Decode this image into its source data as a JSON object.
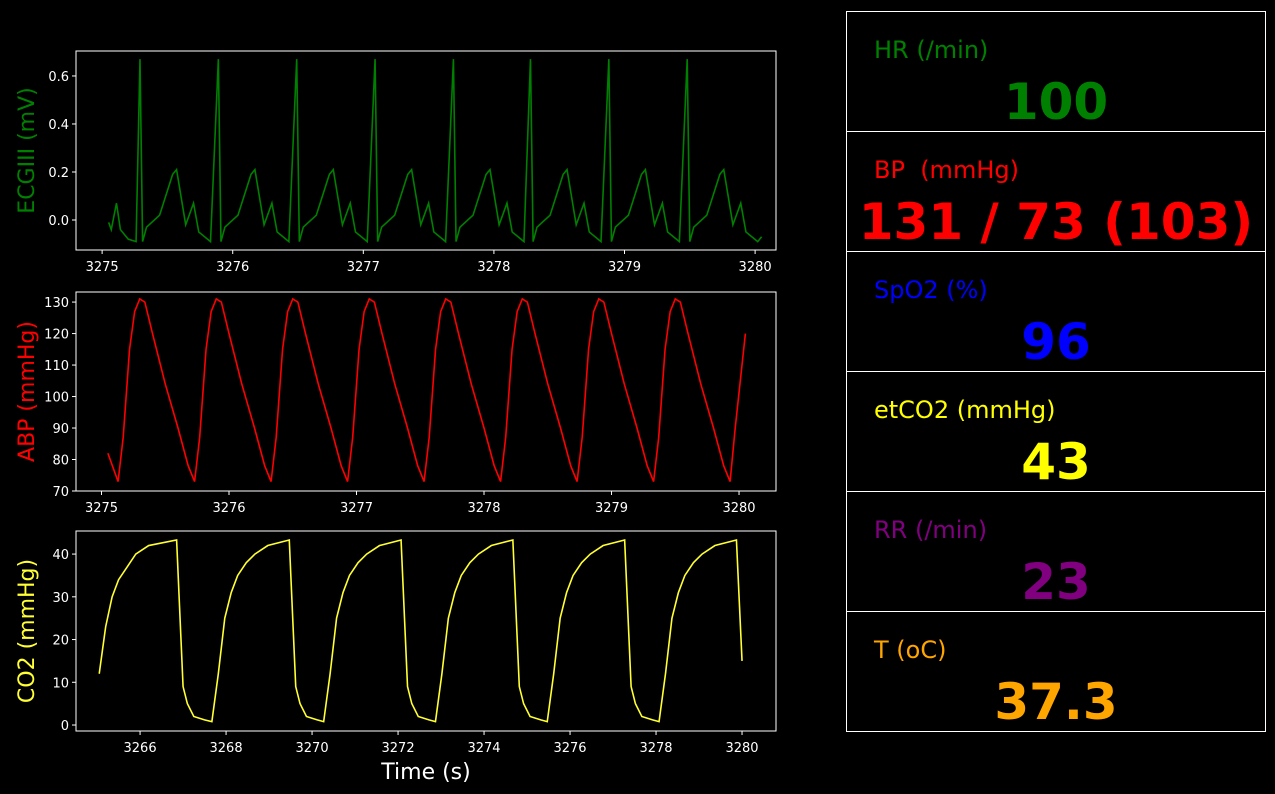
{
  "chart_data": [
    {
      "type": "line",
      "ylabel": "ECGIII (mV)",
      "color": "#008000",
      "xlim": [
        3274.8,
        3280.16
      ],
      "xticks": [
        3275,
        3276,
        3277,
        3278,
        3279,
        3280
      ],
      "ylim": [
        -0.125,
        0.704
      ],
      "yticks": [
        {
          "value": 0,
          "label": "0.0"
        },
        0.2,
        0.4,
        0.6
      ],
      "x": [
        3275.05,
        3275.07,
        3275.11,
        3275.14,
        3275.2,
        3275.26,
        3275.29,
        3275.31,
        3275.34,
        3275.44,
        3275.54,
        3275.57,
        3275.64,
        3275.7,
        3275.74,
        3275.83,
        3275.89,
        3275.91,
        3275.94,
        3276.04,
        3276.14,
        3276.17,
        3276.24,
        3276.3,
        3276.34,
        3276.43,
        3276.49,
        3276.51,
        3276.54,
        3276.64,
        3276.74,
        3276.77,
        3276.84,
        3276.9,
        3276.94,
        3277.03,
        3277.09,
        3277.11,
        3277.14,
        3277.24,
        3277.34,
        3277.37,
        3277.44,
        3277.5,
        3277.54,
        3277.63,
        3277.69,
        3277.71,
        3277.74,
        3277.84,
        3277.94,
        3277.97,
        3278.04,
        3278.1,
        3278.14,
        3278.23,
        3278.28,
        3278.3,
        3278.33,
        3278.43,
        3278.53,
        3278.56,
        3278.63,
        3278.69,
        3278.73,
        3278.82,
        3278.88,
        3278.9,
        3278.93,
        3279.03,
        3279.13,
        3279.16,
        3279.23,
        3279.29,
        3279.33,
        3279.42,
        3279.48,
        3279.5,
        3279.53,
        3279.63,
        3279.73,
        3279.76,
        3279.83,
        3279.89,
        3279.93,
        3280.02,
        3280.05
      ],
      "values": [
        -0.01,
        -0.04,
        0.07,
        -0.04,
        -0.08,
        -0.09,
        0.67,
        -0.09,
        -0.03,
        0.02,
        0.19,
        0.21,
        -0.02,
        0.07,
        -0.05,
        -0.09,
        0.67,
        -0.09,
        -0.03,
        0.02,
        0.19,
        0.21,
        -0.02,
        0.07,
        -0.05,
        -0.09,
        0.67,
        -0.09,
        -0.03,
        0.02,
        0.19,
        0.21,
        -0.02,
        0.07,
        -0.05,
        -0.09,
        0.67,
        -0.09,
        -0.03,
        0.02,
        0.19,
        0.21,
        -0.02,
        0.07,
        -0.05,
        -0.09,
        0.67,
        -0.09,
        -0.03,
        0.02,
        0.19,
        0.21,
        -0.02,
        0.07,
        -0.05,
        -0.09,
        0.67,
        -0.09,
        -0.03,
        0.02,
        0.19,
        0.21,
        -0.02,
        0.07,
        -0.05,
        -0.09,
        0.67,
        -0.09,
        -0.03,
        0.02,
        0.19,
        0.21,
        -0.02,
        0.07,
        -0.05,
        -0.09,
        0.67,
        -0.09,
        -0.03,
        0.02,
        0.19,
        0.21,
        -0.02,
        0.07,
        -0.05,
        -0.09,
        -0.07
      ]
    },
    {
      "type": "line",
      "ylabel": "ABP (mmHg)",
      "color": "#ff0000",
      "xlim": [
        3274.8,
        3280.29
      ],
      "xticks": [
        3275,
        3276,
        3277,
        3278,
        3279,
        3280
      ],
      "ylim": [
        70,
        133.2
      ],
      "yticks": [
        70,
        80,
        90,
        100,
        110,
        120,
        130
      ],
      "x": [
        3275.05,
        3275.13,
        3275.17,
        3275.22,
        3275.26,
        3275.3,
        3275.34,
        3275.4,
        3275.5,
        3275.6,
        3275.68,
        3275.73,
        3275.77,
        3275.82,
        3275.86,
        3275.9,
        3275.94,
        3276.0,
        3276.1,
        3276.2,
        3276.28,
        3276.33,
        3276.37,
        3276.42,
        3276.46,
        3276.5,
        3276.54,
        3276.6,
        3276.7,
        3276.8,
        3276.88,
        3276.93,
        3276.97,
        3277.02,
        3277.06,
        3277.1,
        3277.14,
        3277.2,
        3277.3,
        3277.4,
        3277.48,
        3277.53,
        3277.57,
        3277.62,
        3277.66,
        3277.7,
        3277.74,
        3277.8,
        3277.9,
        3278.0,
        3278.08,
        3278.13,
        3278.17,
        3278.22,
        3278.26,
        3278.3,
        3278.34,
        3278.4,
        3278.5,
        3278.6,
        3278.68,
        3278.73,
        3278.77,
        3278.82,
        3278.86,
        3278.9,
        3278.94,
        3279.0,
        3279.1,
        3279.2,
        3279.28,
        3279.33,
        3279.37,
        3279.42,
        3279.46,
        3279.5,
        3279.54,
        3279.6,
        3279.7,
        3279.8,
        3279.88,
        3279.93,
        3279.97,
        3280.05
      ],
      "values": [
        82,
        73,
        87,
        115,
        127,
        131,
        130,
        120,
        104,
        90,
        78,
        73,
        87,
        115,
        127,
        131,
        130,
        120,
        104,
        90,
        78,
        73,
        87,
        115,
        127,
        131,
        130,
        120,
        104,
        90,
        78,
        73,
        87,
        115,
        127,
        131,
        130,
        120,
        104,
        90,
        78,
        73,
        87,
        115,
        127,
        131,
        130,
        120,
        104,
        90,
        78,
        73,
        87,
        115,
        127,
        131,
        130,
        120,
        104,
        90,
        78,
        73,
        87,
        115,
        127,
        131,
        130,
        120,
        104,
        90,
        78,
        73,
        87,
        115,
        127,
        131,
        130,
        120,
        104,
        90,
        78,
        73,
        90,
        120
      ]
    },
    {
      "type": "line",
      "ylabel": "CO2 (mmHg)",
      "xlabel": "Time (s)",
      "color": "#ffff33",
      "xlim": [
        3264.51,
        3280.79
      ],
      "xticks": [
        3266,
        3268,
        3270,
        3272,
        3274,
        3276,
        3278,
        3280
      ],
      "ylim": [
        -1.4,
        45.4
      ],
      "yticks": [
        0,
        10,
        20,
        30,
        40
      ],
      "x": [
        3265.05,
        3265.2,
        3265.35,
        3265.5,
        3265.7,
        3265.9,
        3266.2,
        3266.85,
        3267.0,
        3267.1,
        3267.25,
        3267.5,
        3267.67,
        3267.82,
        3267.97,
        3268.12,
        3268.27,
        3268.47,
        3268.67,
        3268.97,
        3269.47,
        3269.62,
        3269.72,
        3269.87,
        3270.12,
        3270.27,
        3270.42,
        3270.57,
        3270.72,
        3270.87,
        3271.07,
        3271.27,
        3271.57,
        3272.07,
        3272.22,
        3272.32,
        3272.47,
        3272.72,
        3272.87,
        3273.02,
        3273.17,
        3273.32,
        3273.47,
        3273.67,
        3273.87,
        3274.17,
        3274.67,
        3274.82,
        3274.92,
        3275.07,
        3275.32,
        3275.47,
        3275.62,
        3275.77,
        3275.92,
        3276.07,
        3276.27,
        3276.47,
        3276.77,
        3277.27,
        3277.42,
        3277.52,
        3277.67,
        3277.92,
        3278.07,
        3278.22,
        3278.37,
        3278.52,
        3278.67,
        3278.87,
        3279.07,
        3279.37,
        3279.87,
        3280.0
      ],
      "values": [
        12,
        23,
        30,
        34,
        37,
        40,
        42,
        43.3,
        9,
        5,
        2,
        1.2,
        0.8,
        12,
        25,
        31,
        35,
        38,
        40,
        42,
        43.3,
        9,
        5,
        2,
        1.2,
        0.8,
        12,
        25,
        31,
        35,
        38,
        40,
        42,
        43.3,
        9,
        5,
        2,
        1.2,
        0.8,
        12,
        25,
        31,
        35,
        38,
        40,
        42,
        43.3,
        9,
        5,
        2,
        1.2,
        0.8,
        12,
        25,
        31,
        35,
        38,
        40,
        42,
        43.3,
        9,
        5,
        2,
        1.2,
        0.8,
        12,
        25,
        31,
        35,
        38,
        40,
        42,
        43.3,
        15
      ]
    }
  ],
  "panel": {
    "items": [
      {
        "label": "HR (/min)",
        "value": 100,
        "color": "#008000"
      },
      {
        "label": "BP  (mmHg)",
        "value": "131 / 73 (103)",
        "color": "#ff0000"
      },
      {
        "label": "SpO2 (%)",
        "value": 96,
        "color": "#0000ff"
      },
      {
        "label": "etCO2 (mmHg)",
        "value": 43,
        "color": "#ffff00"
      },
      {
        "label": "RR (/min)",
        "value": 23,
        "color": "#800080"
      },
      {
        "label": "T (oC)",
        "value": 37.3,
        "color": "#ffa500"
      }
    ]
  }
}
